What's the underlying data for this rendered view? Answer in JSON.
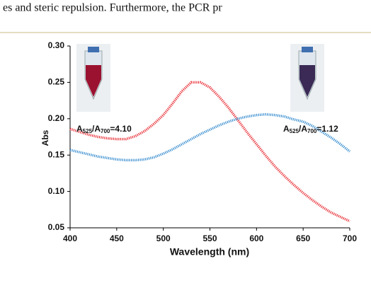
{
  "header_text": "es and steric repulsion. Furthermore, the PCR pr",
  "chart_data": {
    "type": "line",
    "x_label": "Wavelength (nm)",
    "y_label": "Abs",
    "x": [
      400,
      410,
      420,
      430,
      440,
      450,
      460,
      470,
      480,
      490,
      500,
      510,
      520,
      530,
      540,
      550,
      560,
      570,
      580,
      590,
      600,
      610,
      620,
      630,
      640,
      650,
      660,
      670,
      680,
      690,
      700
    ],
    "series": [
      {
        "color": "#e8333a",
        "values": [
          0.186,
          0.182,
          0.178,
          0.175,
          0.173,
          0.172,
          0.172,
          0.176,
          0.183,
          0.193,
          0.205,
          0.221,
          0.238,
          0.25,
          0.25,
          0.243,
          0.23,
          0.215,
          0.198,
          0.181,
          0.165,
          0.149,
          0.134,
          0.121,
          0.109,
          0.098,
          0.088,
          0.079,
          0.071,
          0.065,
          0.059
        ]
      },
      {
        "color": "#3a8fd0",
        "values": [
          0.157,
          0.154,
          0.151,
          0.148,
          0.146,
          0.144,
          0.143,
          0.143,
          0.144,
          0.147,
          0.152,
          0.158,
          0.165,
          0.172,
          0.179,
          0.185,
          0.191,
          0.196,
          0.2,
          0.203,
          0.205,
          0.206,
          0.205,
          0.203,
          0.199,
          0.196,
          0.19,
          0.182,
          0.174,
          0.165,
          0.155
        ]
      }
    ],
    "xlim": [
      400,
      700
    ],
    "xticks": [
      400,
      450,
      500,
      550,
      600,
      650,
      700
    ],
    "ylim": [
      0.05,
      0.3
    ],
    "yticks": [
      {
        "value": 0.05,
        "label": "0.05"
      },
      {
        "value": 0.1,
        "label": "0.10"
      },
      {
        "value": 0.15,
        "label": "0.15"
      },
      {
        "value": 0.2,
        "label": "0.20"
      },
      {
        "value": 0.25,
        "label": "0.25"
      },
      {
        "value": 0.3,
        "label": "0.30"
      }
    ],
    "annotations": [
      [
        "A",
        "525",
        "/A",
        "700",
        "=4.10"
      ],
      [
        "A",
        "525",
        "/A",
        "700",
        "=1.12"
      ]
    ]
  }
}
